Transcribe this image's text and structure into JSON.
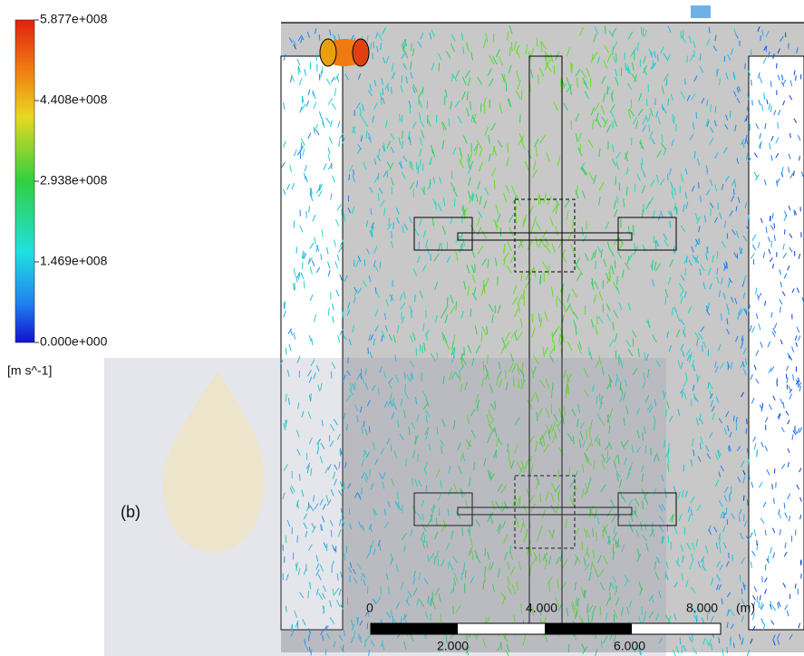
{
  "legend": {
    "labels": [
      "5.877e+008",
      "4.408e+008",
      "2.938e+008",
      "1.469e+008",
      "0.000e+000"
    ],
    "unit": "[m s^-1]"
  },
  "panel_label": "(b)",
  "scale_bar": {
    "top_labels": [
      "0",
      "4.000",
      "8.000"
    ],
    "unit": "(m)",
    "bottom_labels": [
      "2.000",
      "6.000"
    ]
  }
}
